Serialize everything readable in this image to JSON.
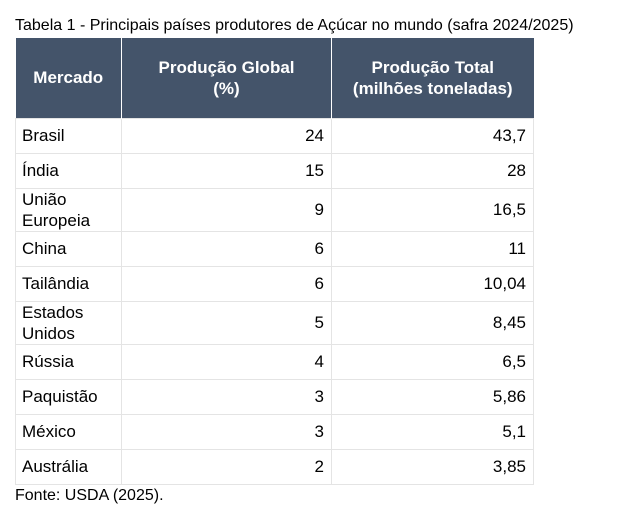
{
  "caption": "Tabela 1 - Principais países produtores de Açúcar no mundo (safra 2024/2025)",
  "table": {
    "headers": {
      "market": "Mercado",
      "global_line1": "Produção Global",
      "global_line2": "(%)",
      "total_line1": "Produção Total",
      "total_line2": "(milhões toneladas)"
    },
    "rows": [
      {
        "market": "Brasil",
        "global": "24",
        "total": "43,7"
      },
      {
        "market": "Índia",
        "global": "15",
        "total": "28"
      },
      {
        "market_line1": "União",
        "market_line2": "Europeia",
        "global": "9",
        "total": "16,5"
      },
      {
        "market": "China",
        "global": "6",
        "total": "11"
      },
      {
        "market": "Tailândia",
        "global": "6",
        "total": "10,04"
      },
      {
        "market_line1": "Estados",
        "market_line2": "Unidos",
        "global": "5",
        "total": "8,45"
      },
      {
        "market": "Rússia",
        "global": "4",
        "total": "6,5"
      },
      {
        "market": "Paquistão",
        "global": "3",
        "total": "5,86"
      },
      {
        "market": "México",
        "global": "3",
        "total": "5,1"
      },
      {
        "market": "Austrália",
        "global": "2",
        "total": "3,85"
      }
    ]
  },
  "source": "Fonte: USDA (2025).",
  "colors": {
    "header_bg": "#44546a",
    "header_text": "#ffffff",
    "grid": "#e4e4e4"
  }
}
